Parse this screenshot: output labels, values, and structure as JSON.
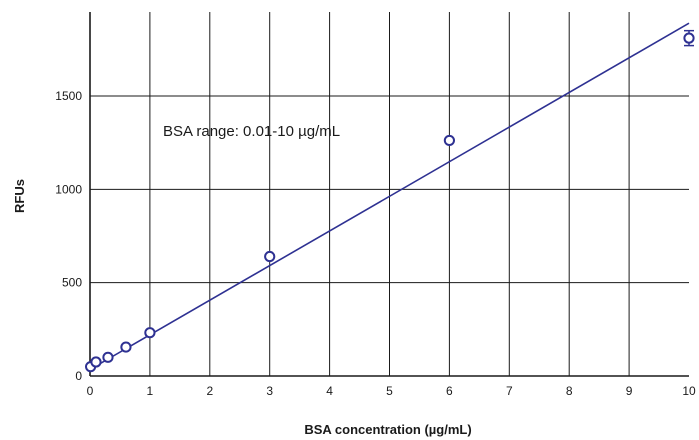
{
  "chart_data": {
    "type": "scatter",
    "title": "",
    "xlabel": "BSA concentration (µg/mL)",
    "ylabel": "RFUs",
    "xlim": [
      0,
      10
    ],
    "ylim": [
      0,
      1950
    ],
    "x_ticks": [
      0,
      1,
      2,
      3,
      4,
      5,
      6,
      7,
      8,
      9,
      10
    ],
    "x_tick_labels": [
      "0",
      "1",
      "2",
      "3",
      "4",
      "5",
      "6",
      "7",
      "8",
      "9",
      "10"
    ],
    "y_ticks": [
      0,
      500,
      1000,
      1500
    ],
    "y_tick_labels": [
      "0",
      "500",
      "1000",
      "1500"
    ],
    "grid": true,
    "annotation": "BSA range: 0.01-10 µg/mL",
    "colors": {
      "series": "#2e3192",
      "grid": "#1a1a1a"
    },
    "series": [
      {
        "points": [
          {
            "x": 0.01,
            "y": 50
          },
          {
            "x": 0.1,
            "y": 75
          },
          {
            "x": 0.3,
            "y": 100
          },
          {
            "x": 0.6,
            "y": 155
          },
          {
            "x": 1,
            "y": 232
          },
          {
            "x": 3,
            "y": 640
          },
          {
            "x": 6,
            "y": 1262
          },
          {
            "x": 10,
            "y": 1810,
            "err": 40
          }
        ]
      }
    ],
    "fit_line": {
      "x": [
        0,
        10
      ],
      "y": [
        35,
        1890
      ]
    }
  }
}
